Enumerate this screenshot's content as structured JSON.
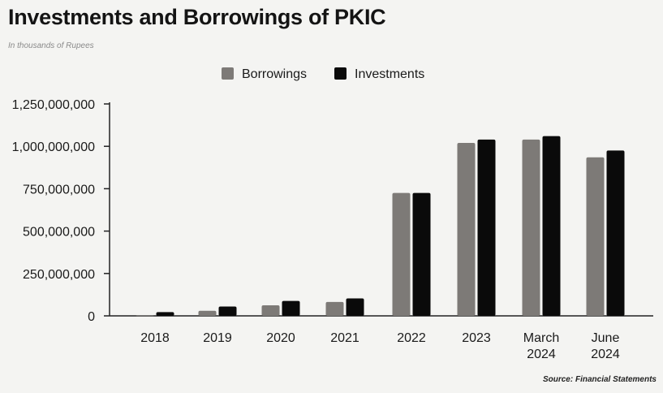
{
  "title": "Investments and Borrowings of PKIC",
  "subtitle": "In thousands of Rupees",
  "source": "Source: Financial Statements",
  "colors": {
    "borrowings": "#7d7a77",
    "investments": "#0a0a0a"
  },
  "chart_data": {
    "type": "bar",
    "categories": [
      [
        "2018"
      ],
      [
        "2019"
      ],
      [
        "2020"
      ],
      [
        "2021"
      ],
      [
        "2022"
      ],
      [
        "2023"
      ],
      [
        "March",
        "2024"
      ],
      [
        "June",
        "2024"
      ]
    ],
    "series": [
      {
        "name": "Borrowings",
        "values": [
          2000000,
          30000000,
          62000000,
          82000000,
          725000000,
          1020000000,
          1040000000,
          935000000
        ]
      },
      {
        "name": "Investments",
        "values": [
          22000000,
          55000000,
          88000000,
          103000000,
          725000000,
          1040000000,
          1060000000,
          975000000
        ]
      }
    ],
    "yticks": [
      "0",
      "250,000,000",
      "500,000,000",
      "750,000,000",
      "1,000,000,000",
      "1,250,000,000"
    ],
    "ylim": [
      0,
      1250000000
    ],
    "grid": false,
    "legend": "top-center"
  }
}
